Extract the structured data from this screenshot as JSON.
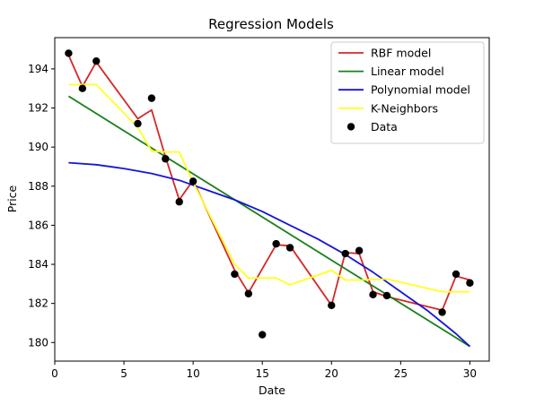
{
  "chart_data": {
    "type": "line",
    "title": "Regression Models",
    "xlabel": "Date",
    "ylabel": "Price",
    "xlim": [
      0,
      31.4
    ],
    "ylim": [
      179.05,
      195.6
    ],
    "xticks": [
      0,
      5,
      10,
      15,
      20,
      25,
      30
    ],
    "yticks": [
      180,
      182,
      184,
      186,
      188,
      190,
      192,
      194
    ],
    "grid": false,
    "legend_position": "top-right",
    "series": [
      {
        "name": "RBF model",
        "kind": "line",
        "color": "#d62728",
        "x": [
          1,
          2,
          3,
          6,
          7,
          8,
          9,
          10,
          13,
          14,
          16,
          17,
          20,
          21,
          22,
          23,
          24,
          28,
          29,
          30
        ],
        "y": [
          194.7,
          193.1,
          194.35,
          191.45,
          191.9,
          189.5,
          187.3,
          188.3,
          183.7,
          182.55,
          185.0,
          184.95,
          181.9,
          184.6,
          184.55,
          182.6,
          182.35,
          181.65,
          183.4,
          183.2
        ]
      },
      {
        "name": "Linear model",
        "kind": "line",
        "color": "#1a7f1a",
        "x": [
          1,
          30
        ],
        "y": [
          192.6,
          179.8
        ]
      },
      {
        "name": "Polynomial model",
        "kind": "line",
        "color": "#1515d6",
        "x": [
          1,
          3,
          5,
          7,
          9,
          11,
          13,
          15,
          17,
          19,
          21,
          23,
          25,
          27,
          29,
          30
        ],
        "y": [
          189.2,
          189.1,
          188.9,
          188.65,
          188.3,
          187.8,
          187.3,
          186.7,
          186.0,
          185.3,
          184.5,
          183.6,
          182.6,
          181.6,
          180.45,
          179.8
        ]
      },
      {
        "name": "K-Neighbors",
        "kind": "line",
        "color": "#ffff22",
        "x": [
          1,
          3,
          6,
          7,
          8,
          9,
          10,
          13,
          14,
          16,
          17,
          20,
          21,
          22,
          24,
          28,
          29,
          30
        ],
        "y": [
          193.2,
          193.2,
          191.0,
          189.8,
          189.75,
          189.75,
          188.2,
          184.0,
          183.3,
          183.3,
          182.95,
          183.7,
          183.2,
          183.2,
          183.25,
          182.6,
          182.6,
          182.6
        ]
      },
      {
        "name": "Data",
        "kind": "scatter",
        "color": "#000000",
        "x": [
          1,
          2,
          3,
          6,
          7,
          8,
          9,
          10,
          13,
          14,
          15,
          16,
          17,
          20,
          21,
          22,
          23,
          24,
          28,
          29,
          30
        ],
        "y": [
          194.8,
          193.0,
          194.4,
          191.2,
          192.5,
          189.4,
          187.2,
          188.25,
          183.5,
          182.5,
          180.4,
          185.05,
          184.85,
          181.9,
          184.55,
          184.7,
          182.45,
          182.4,
          181.55,
          183.5,
          183.05
        ]
      }
    ]
  }
}
